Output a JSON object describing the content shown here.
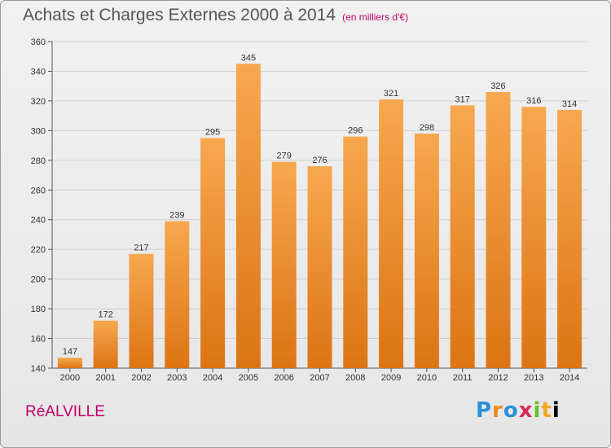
{
  "header": {
    "title": "Achats et Charges Externes 2000 à 2014",
    "subtitle": "(en milliers d'€)"
  },
  "commune": "RéALVILLE",
  "logo": [
    "P",
    "r",
    "o",
    "x",
    "i",
    "t",
    "i"
  ],
  "colors": {
    "bar_top": "#f7a84f",
    "bar_bottom": "#dc7414",
    "accent": "#c0006b"
  },
  "chart_data": {
    "type": "bar",
    "title": "Achats et Charges Externes 2000 à 2014",
    "subtitle": "(en milliers d'€)",
    "xlabel": "",
    "ylabel": "",
    "categories": [
      "2000",
      "2001",
      "2002",
      "2003",
      "2004",
      "2005",
      "2006",
      "2007",
      "2008",
      "2009",
      "2010",
      "2011",
      "2012",
      "2013",
      "2014"
    ],
    "values": [
      147,
      172,
      217,
      239,
      295,
      345,
      279,
      276,
      296,
      321,
      298,
      317,
      326,
      316,
      314
    ],
    "ylim": [
      140,
      360
    ],
    "yticks": [
      140,
      160,
      180,
      200,
      220,
      240,
      260,
      280,
      300,
      320,
      340,
      360
    ],
    "grid": true,
    "legend": "none"
  }
}
